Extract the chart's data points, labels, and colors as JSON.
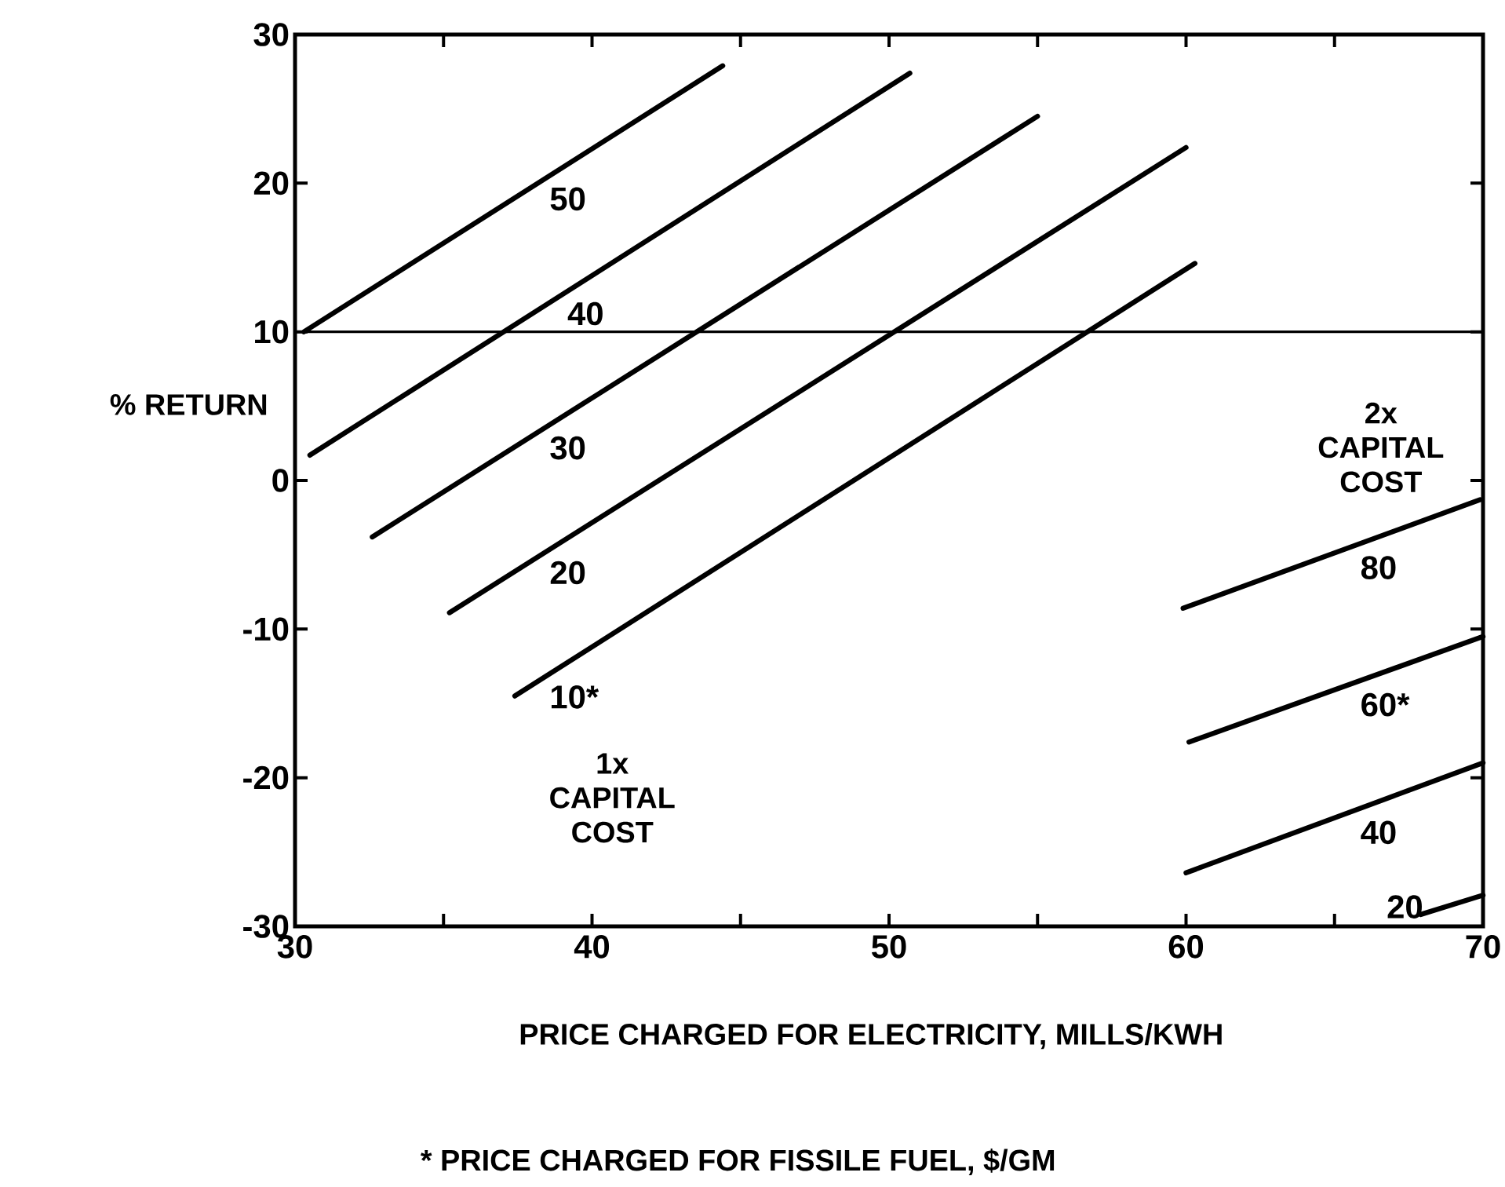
{
  "chart_data": {
    "type": "line",
    "xlabel": "PRICE CHARGED FOR ELECTRICITY, MILLS/KWH",
    "ylabel": "% RETURN",
    "xlim": [
      30,
      70
    ],
    "ylim": [
      -30,
      30
    ],
    "xticks": [
      30,
      {
        "value": 35,
        "label": null
      },
      40,
      {
        "value": 45,
        "label": null
      },
      50,
      {
        "value": 55,
        "label": null
      },
      60,
      {
        "value": 65,
        "label": null
      },
      70
    ],
    "yticks": [
      -30,
      -20,
      -10,
      0,
      10,
      20,
      30
    ],
    "grid": false,
    "marker": "none",
    "line_style": "solid",
    "series": [
      {
        "name": "50",
        "color": "#000000",
        "x": [
          30.3,
          44.4
        ],
        "values": [
          10,
          27.9
        ]
      },
      {
        "name": "40",
        "color": "#000000",
        "x": [
          30.5,
          50.7
        ],
        "values": [
          1.7,
          27.4
        ]
      },
      {
        "name": "30",
        "color": "#000000",
        "x": [
          32.6,
          55
        ],
        "values": [
          -3.8,
          24.5
        ]
      },
      {
        "name": "20",
        "color": "#000000",
        "x": [
          35.2,
          60
        ],
        "values": [
          -8.9,
          22.4
        ]
      },
      {
        "name": "10*",
        "color": "#000000",
        "x": [
          37.4,
          60.3
        ],
        "values": [
          -14.5,
          14.6
        ]
      },
      {
        "name": "80",
        "color": "#000000",
        "x": [
          59.9,
          69.9
        ],
        "values": [
          -8.6,
          -1.3
        ]
      },
      {
        "name": "60*",
        "color": "#000000",
        "x": [
          60.1,
          70
        ],
        "values": [
          -17.6,
          -10.5
        ]
      },
      {
        "name": "40",
        "color": "#000000",
        "x": [
          60,
          70
        ],
        "values": [
          -26.4,
          -19
        ]
      },
      {
        "name": "20",
        "color": "#000000",
        "x": [
          67.9,
          70
        ],
        "values": [
          -29.2,
          -27.9
        ]
      }
    ],
    "ref_lines": [
      {
        "axis": "y",
        "value": 10,
        "color": "#000000",
        "line_style": "solid"
      }
    ],
    "annotations": [
      "1x CAPITAL COST",
      "2x CAPITAL COST",
      "* PRICE CHARGED FOR FISSILE FUEL, $/GM"
    ]
  }
}
